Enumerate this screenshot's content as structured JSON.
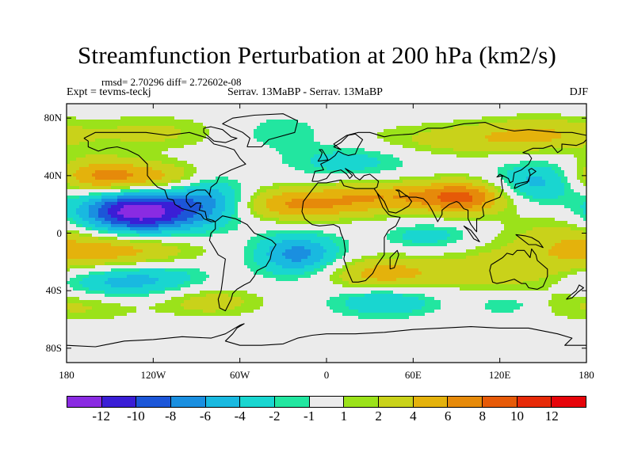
{
  "title": "Streamfunction Perturbation at 200 hPa (km2/s)",
  "subtitle": {
    "stats": "rmsd= 2.70296 diff= 2.72602e-08",
    "experiment": "Expt = tevms-teckj",
    "comparison": "Serrav.   13MaBP - Serrav.   13MaBP",
    "season": "DJF"
  },
  "axes": {
    "x_ticks": [
      "180",
      "120W",
      "60W",
      "0",
      "60E",
      "120E",
      "180"
    ],
    "y_ticks": [
      "80N",
      "40N",
      "0",
      "40S",
      "80S"
    ]
  },
  "colorbar": {
    "labels": [
      "-12",
      "-10",
      "-8",
      "-6",
      "-4",
      "-2",
      "-1",
      "1",
      "2",
      "4",
      "6",
      "8",
      "10",
      "12"
    ],
    "colors": [
      "#8a2be2",
      "#3a1ed6",
      "#1c56d8",
      "#1a8fe0",
      "#19b9e0",
      "#19d6d0",
      "#22e6a0",
      "#ebebeb",
      "#9be21a",
      "#c9d21a",
      "#e4b20c",
      "#e68a0a",
      "#e65a08",
      "#e62a08",
      "#e6040a"
    ]
  },
  "chart_data": {
    "type": "heatmap",
    "variable": "Streamfunction Perturbation",
    "level": "200 hPa",
    "units": "km2/s",
    "lon_range": [
      -180,
      180
    ],
    "lat_range": [
      -90,
      90
    ],
    "levels": [
      -12,
      -10,
      -8,
      -6,
      -4,
      -2,
      -1,
      1,
      2,
      4,
      6,
      8,
      10,
      12
    ],
    "features": [
      {
        "lon": -130,
        "lat": 15,
        "amp": -14,
        "slon": 30,
        "slat": 11
      },
      {
        "lon": -80,
        "lat": 25,
        "amp": -5,
        "slon": 18,
        "slat": 12
      },
      {
        "lon": -20,
        "lat": -15,
        "amp": -7,
        "slon": 20,
        "slat": 10
      },
      {
        "lon": -115,
        "lat": -30,
        "amp": -3,
        "slon": 25,
        "slat": 8
      },
      {
        "lon": -150,
        "lat": -35,
        "amp": -4,
        "slon": 25,
        "slat": 8
      },
      {
        "lon": -130,
        "lat": 38,
        "amp": 6,
        "slon": 35,
        "slat": 8
      },
      {
        "lon": -140,
        "lat": -12,
        "amp": 5,
        "slon": 35,
        "slat": 9
      },
      {
        "lon": -160,
        "lat": 40,
        "amp": 3,
        "slon": 20,
        "slat": 10
      },
      {
        "lon": -80,
        "lat": -48,
        "amp": 3,
        "slon": 25,
        "slat": 7
      },
      {
        "lon": -20,
        "lat": 20,
        "amp": 6,
        "slon": 30,
        "slat": 8
      },
      {
        "lon": 40,
        "lat": 25,
        "amp": 5,
        "slon": 30,
        "slat": 8
      },
      {
        "lon": 95,
        "lat": 25,
        "amp": 8,
        "slon": 22,
        "slat": 8
      },
      {
        "lon": 40,
        "lat": -28,
        "amp": 5,
        "slon": 30,
        "slat": 8
      },
      {
        "lon": 120,
        "lat": -25,
        "amp": 3,
        "slon": 30,
        "slat": 10
      },
      {
        "lon": 70,
        "lat": -2,
        "amp": -3,
        "slon": 20,
        "slat": 6
      },
      {
        "lon": 40,
        "lat": -48,
        "amp": -4,
        "slon": 25,
        "slat": 7
      },
      {
        "lon": 15,
        "lat": 50,
        "amp": -3,
        "slon": 30,
        "slat": 8
      },
      {
        "lon": 145,
        "lat": 35,
        "amp": -5,
        "slon": 20,
        "slat": 10
      },
      {
        "lon": 125,
        "lat": -50,
        "amp": -2,
        "slon": 15,
        "slat": 5
      },
      {
        "lon": 100,
        "lat": 65,
        "amp": 3,
        "slon": 50,
        "slat": 8
      },
      {
        "lon": 150,
        "lat": 70,
        "amp": 3,
        "slon": 30,
        "slat": 8
      },
      {
        "lon": -120,
        "lat": 70,
        "amp": 2.5,
        "slon": 30,
        "slat": 8
      },
      {
        "lon": -30,
        "lat": 70,
        "amp": -2,
        "slon": 20,
        "slat": 8
      },
      {
        "lon": -170,
        "lat": -50,
        "amp": 2.5,
        "slon": 30,
        "slat": 8
      },
      {
        "lon": 165,
        "lat": -5,
        "amp": 3,
        "slon": 30,
        "slat": 15
      }
    ]
  }
}
